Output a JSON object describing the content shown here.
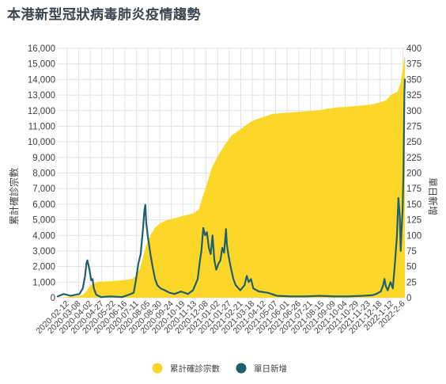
{
  "title": "本港新型冠狀病毒肺炎疫情趨勢",
  "chart_data": {
    "type": "area",
    "title": "本港新型冠狀病毒肺炎疫情趨勢",
    "colors": {
      "cumulative": "#fcd72a",
      "daily": "#1f5f6e",
      "grid": "#e2e2e2",
      "text": "#3f3f3f"
    },
    "y_left": {
      "label": "累計確診宗數",
      "min": 0,
      "max": 16000,
      "step": 1000,
      "ticks": [
        "0",
        "1,000",
        "2,000",
        "3,000",
        "4,000",
        "5,000",
        "6,000",
        "7,000",
        "8,000",
        "9,000",
        "10,000",
        "11,000",
        "12,000",
        "13,000",
        "14,000",
        "15,000",
        "16,000"
      ]
    },
    "y_right": {
      "label": "單日新增",
      "min": 0,
      "max": 400,
      "step": 25,
      "ticks": [
        "0",
        "25",
        "50",
        "75",
        "100",
        "125",
        "150",
        "175",
        "200",
        "225",
        "250",
        "275",
        "300",
        "325",
        "350",
        "375",
        "400"
      ]
    },
    "x_start": "2020-01-23",
    "x_end": "2022-02-10",
    "x_ticks": [
      "2020-02-12",
      "2020-03-08",
      "2020-04-02",
      "2020-04-27",
      "2020-05-22",
      "2020-06-16",
      "2020-07-11",
      "2020-08-05",
      "2020-08-30",
      "2020-09-24",
      "2020-10-19",
      "2020-11-13",
      "2020-12-08",
      "2021-01-02",
      "2021-01-27",
      "2021-02-21",
      "2021-03-18",
      "2021-04-12",
      "2021-05-07",
      "2021-06-01",
      "2021-06-26",
      "2021-07-21",
      "2021-08-15",
      "2021-09-09",
      "2021-10-04",
      "2021-10-29",
      "2021-11-23",
      "2021-12-18",
      "2022-1-12",
      "2022-2-6"
    ],
    "grid": true,
    "legend_position": "bottom",
    "series": [
      {
        "name": "累計確診宗數",
        "type": "area",
        "axis": "left",
        "points": [
          [
            "2020-01-23",
            2
          ],
          [
            "2020-02-10",
            40
          ],
          [
            "2020-03-01",
            100
          ],
          [
            "2020-03-16",
            160
          ],
          [
            "2020-03-25",
            420
          ],
          [
            "2020-04-02",
            800
          ],
          [
            "2020-04-20",
            1030
          ],
          [
            "2020-05-10",
            1050
          ],
          [
            "2020-06-10",
            1110
          ],
          [
            "2020-07-01",
            1200
          ],
          [
            "2020-07-10",
            1400
          ],
          [
            "2020-07-20",
            2000
          ],
          [
            "2020-07-31",
            3300
          ],
          [
            "2020-08-10",
            4000
          ],
          [
            "2020-08-20",
            4500
          ],
          [
            "2020-09-01",
            4800
          ],
          [
            "2020-09-15",
            4980
          ],
          [
            "2020-10-01",
            5100
          ],
          [
            "2020-10-20",
            5250
          ],
          [
            "2020-11-10",
            5400
          ],
          [
            "2020-11-22",
            5650
          ],
          [
            "2020-12-01",
            6500
          ],
          [
            "2020-12-10",
            7300
          ],
          [
            "2020-12-20",
            8300
          ],
          [
            "2021-01-01",
            9000
          ],
          [
            "2021-01-15",
            9700
          ],
          [
            "2021-02-01",
            10400
          ],
          [
            "2021-02-20",
            10800
          ],
          [
            "2021-03-15",
            11300
          ],
          [
            "2021-04-01",
            11500
          ],
          [
            "2021-05-01",
            11800
          ],
          [
            "2021-06-15",
            11900
          ],
          [
            "2021-08-01",
            12000
          ],
          [
            "2021-09-15",
            12200
          ],
          [
            "2021-11-01",
            12300
          ],
          [
            "2021-12-01",
            12400
          ],
          [
            "2021-12-31",
            12650
          ],
          [
            "2022-01-10",
            13000
          ],
          [
            "2022-01-25",
            13200
          ],
          [
            "2022-02-01",
            13800
          ],
          [
            "2022-02-06",
            14800
          ],
          [
            "2022-02-10",
            15600
          ]
        ]
      },
      {
        "name": "單日新增",
        "type": "line",
        "axis": "right",
        "points": [
          [
            "2020-01-23",
            2
          ],
          [
            "2020-02-05",
            6
          ],
          [
            "2020-02-20",
            3
          ],
          [
            "2020-03-10",
            6
          ],
          [
            "2020-03-17",
            15
          ],
          [
            "2020-03-22",
            35
          ],
          [
            "2020-03-25",
            55
          ],
          [
            "2020-03-27",
            60
          ],
          [
            "2020-03-30",
            50
          ],
          [
            "2020-04-01",
            43
          ],
          [
            "2020-04-04",
            28
          ],
          [
            "2020-04-07",
            30
          ],
          [
            "2020-04-10",
            15
          ],
          [
            "2020-04-15",
            5
          ],
          [
            "2020-04-25",
            1
          ],
          [
            "2020-05-15",
            2
          ],
          [
            "2020-06-10",
            1
          ],
          [
            "2020-06-25",
            5
          ],
          [
            "2020-07-05",
            8
          ],
          [
            "2020-07-10",
            30
          ],
          [
            "2020-07-15",
            55
          ],
          [
            "2020-07-20",
            70
          ],
          [
            "2020-07-25",
            110
          ],
          [
            "2020-07-28",
            140
          ],
          [
            "2020-07-30",
            149
          ],
          [
            "2020-08-01",
            120
          ],
          [
            "2020-08-05",
            95
          ],
          [
            "2020-08-10",
            70
          ],
          [
            "2020-08-15",
            48
          ],
          [
            "2020-08-20",
            30
          ],
          [
            "2020-08-25",
            20
          ],
          [
            "2020-09-01",
            15
          ],
          [
            "2020-09-10",
            12
          ],
          [
            "2020-09-20",
            8
          ],
          [
            "2020-10-01",
            6
          ],
          [
            "2020-10-15",
            10
          ],
          [
            "2020-10-30",
            6
          ],
          [
            "2020-11-10",
            12
          ],
          [
            "2020-11-20",
            30
          ],
          [
            "2020-11-25",
            60
          ],
          [
            "2020-11-28",
            75
          ],
          [
            "2020-12-02",
            112
          ],
          [
            "2020-12-06",
            100
          ],
          [
            "2020-12-10",
            105
          ],
          [
            "2020-12-14",
            80
          ],
          [
            "2020-12-18",
            70
          ],
          [
            "2020-12-22",
            100
          ],
          [
            "2020-12-26",
            60
          ],
          [
            "2020-12-30",
            45
          ],
          [
            "2021-01-04",
            55
          ],
          [
            "2021-01-08",
            60
          ],
          [
            "2021-01-12",
            80
          ],
          [
            "2021-01-16",
            72
          ],
          [
            "2021-01-20",
            110
          ],
          [
            "2021-01-22",
            85
          ],
          [
            "2021-01-26",
            65
          ],
          [
            "2021-01-30",
            50
          ],
          [
            "2021-02-05",
            30
          ],
          [
            "2021-02-10",
            20
          ],
          [
            "2021-02-20",
            12
          ],
          [
            "2021-03-01",
            20
          ],
          [
            "2021-03-06",
            35
          ],
          [
            "2021-03-10",
            25
          ],
          [
            "2021-03-15",
            30
          ],
          [
            "2021-03-20",
            15
          ],
          [
            "2021-04-01",
            10
          ],
          [
            "2021-04-20",
            8
          ],
          [
            "2021-05-10",
            3
          ],
          [
            "2021-06-10",
            2
          ],
          [
            "2021-07-10",
            2
          ],
          [
            "2021-08-10",
            3
          ],
          [
            "2021-09-10",
            2
          ],
          [
            "2021-10-10",
            2
          ],
          [
            "2021-11-10",
            3
          ],
          [
            "2021-12-01",
            4
          ],
          [
            "2021-12-10",
            6
          ],
          [
            "2021-12-20",
            10
          ],
          [
            "2021-12-25",
            20
          ],
          [
            "2021-12-28",
            30
          ],
          [
            "2021-12-31",
            18
          ],
          [
            "2022-01-04",
            12
          ],
          [
            "2022-01-10",
            25
          ],
          [
            "2022-01-15",
            15
          ],
          [
            "2022-01-20",
            60
          ],
          [
            "2022-01-24",
            100
          ],
          [
            "2022-01-27",
            160
          ],
          [
            "2022-01-30",
            130
          ],
          [
            "2022-02-01",
            75
          ],
          [
            "2022-02-03",
            110
          ],
          [
            "2022-02-05",
            140
          ],
          [
            "2022-02-07",
            200
          ],
          [
            "2022-02-09",
            330
          ],
          [
            "2022-02-10",
            350
          ]
        ]
      }
    ]
  }
}
